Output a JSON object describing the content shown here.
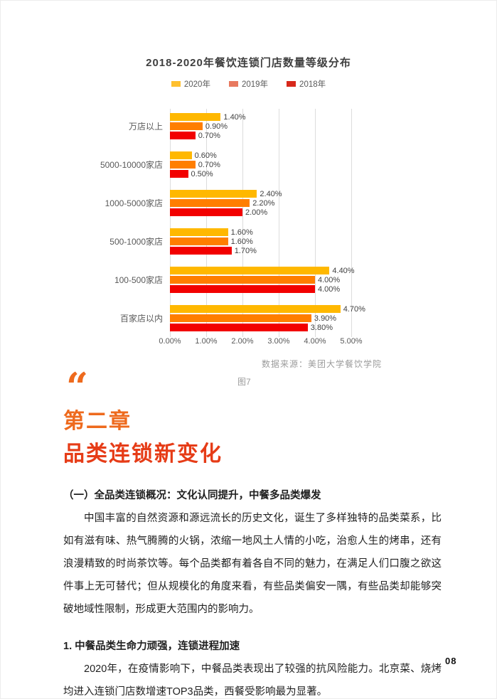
{
  "page_number": "08",
  "chart": {
    "source": "数据来源：美团大学餐饮学院",
    "caption": "图7"
  },
  "chart_data": {
    "type": "bar",
    "orientation": "horizontal",
    "title": "2018-2020年餐饮连锁门店数量等级分布",
    "categories": [
      "万店以上",
      "5000-10000家店",
      "1000-5000家店",
      "500-1000家店",
      "100-500家店",
      "百家店以内"
    ],
    "series": [
      {
        "name": "2020年",
        "color": "#FFB800",
        "legend_color": "#FFC02E",
        "values": [
          1.4,
          0.6,
          2.4,
          1.6,
          4.4,
          4.7
        ]
      },
      {
        "name": "2019年",
        "color": "#FF7E00",
        "legend_color": "#E8795F",
        "values": [
          0.9,
          0.7,
          2.2,
          1.6,
          4.0,
          3.9
        ]
      },
      {
        "name": "2018年",
        "color": "#F20000",
        "legend_color": "#D7281B",
        "values": [
          0.7,
          0.5,
          2.0,
          1.7,
          4.0,
          3.8
        ]
      }
    ],
    "x_ticks": [
      "0.00%",
      "1.00%",
      "2.00%",
      "3.00%",
      "4.00%",
      "5.00%"
    ],
    "xlim": [
      0,
      5
    ],
    "legend_position": "top",
    "grid": "vertical"
  },
  "chapter": {
    "quote_mark": "“",
    "number": "第二章",
    "title": "品类连锁新变化",
    "number_color": "#ee6a1d",
    "title_color": "#e63c17"
  },
  "sections": [
    {
      "heading": "（一）全品类连锁概况：文化认同提升，中餐多品类爆发",
      "paragraph": "中国丰富的自然资源和源远流长的历史文化，诞生了多样独特的品类菜系，比如有滋有味、热气腾腾的火锅，浓缩一地风土人情的小吃，治愈人生的烤串，还有浪漫精致的时尚茶饮等。每个品类都有着各自不同的魅力，在满足人们口腹之欲这件事上无可替代；但从规模化的角度来看，有些品类偏安一隅，有些品类却能够突破地域性限制，形成更大范围内的影响力。"
    },
    {
      "heading": "1. 中餐品类生命力顽强，连锁进程加速",
      "paragraph": "2020年，在疫情影响下，中餐品类表现出了较强的抗风险能力。北京菜、烧烤均进入连锁门店数增速TOP3品类，西餐受影响最为显著。"
    }
  ]
}
